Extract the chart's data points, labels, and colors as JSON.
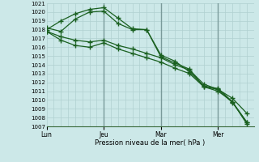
{
  "xlabel": "Pression niveau de la mer( hPa )",
  "bg_color": "#cce8e8",
  "grid_color_minor": "#b0d0d0",
  "grid_color_major": "#7a9a9a",
  "line_color": "#1a6020",
  "ylim": [
    1007,
    1021
  ],
  "yticks": [
    1007,
    1008,
    1009,
    1010,
    1011,
    1012,
    1013,
    1014,
    1015,
    1016,
    1017,
    1018,
    1019,
    1020,
    1021
  ],
  "xtick_labels": [
    "Lun",
    "Jeu",
    "Mar",
    "Mer"
  ],
  "xtick_positions": [
    0,
    4,
    8,
    12
  ],
  "xlim": [
    0,
    14.5
  ],
  "vline_positions": [
    4,
    8,
    12
  ],
  "lines": [
    {
      "x": [
        0,
        1,
        2,
        3,
        4,
        5,
        6,
        7,
        8,
        9,
        10,
        11,
        12,
        13,
        14
      ],
      "y": [
        1018.0,
        1019.0,
        1019.8,
        1020.3,
        1020.5,
        1019.3,
        1018.1,
        1018.0,
        1015.1,
        1014.4,
        1013.2,
        1011.6,
        1011.3,
        1009.8,
        1007.3
      ]
    },
    {
      "x": [
        0,
        1,
        2,
        3,
        4,
        5,
        6,
        7,
        8,
        9,
        10,
        11,
        12,
        13,
        14
      ],
      "y": [
        1018.2,
        1017.8,
        1019.2,
        1020.0,
        1020.1,
        1018.7,
        1018.0,
        1018.0,
        1014.9,
        1014.2,
        1013.5,
        1011.5,
        1011.2,
        1009.7,
        1007.5
      ]
    },
    {
      "x": [
        0,
        1,
        2,
        3,
        4,
        5,
        6,
        7,
        8,
        9,
        10,
        11,
        12,
        13,
        14
      ],
      "y": [
        1017.8,
        1017.2,
        1016.8,
        1016.6,
        1016.8,
        1016.2,
        1015.8,
        1015.3,
        1014.8,
        1014.0,
        1013.4,
        1011.8,
        1011.2,
        1010.2,
        1008.5
      ]
    },
    {
      "x": [
        0,
        1,
        2,
        3,
        4,
        5,
        6,
        7,
        8,
        9,
        10,
        11,
        12,
        13,
        14
      ],
      "y": [
        1017.8,
        1016.8,
        1016.2,
        1016.0,
        1016.5,
        1015.8,
        1015.3,
        1014.8,
        1014.3,
        1013.6,
        1013.0,
        1011.5,
        1011.0,
        1009.8,
        1007.5
      ]
    }
  ]
}
